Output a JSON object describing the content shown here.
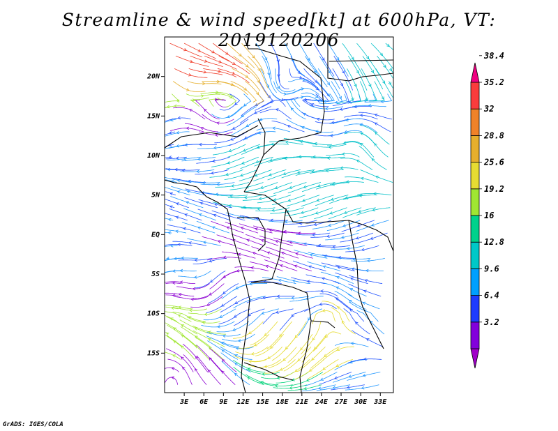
{
  "title": "Streamline & wind speed[kt] at 600hPa, VT: 2019120206",
  "credit": "GrADS: IGES/COLA",
  "map": {
    "lon_range": [
      0,
      35
    ],
    "lat_range": [
      -20,
      25
    ],
    "y_ticks": [
      {
        "lat": 20,
        "label": "20N"
      },
      {
        "lat": 15,
        "label": "15N"
      },
      {
        "lat": 10,
        "label": "10N"
      },
      {
        "lat": 5,
        "label": "5N"
      },
      {
        "lat": 0,
        "label": "EQ"
      },
      {
        "lat": -5,
        "label": "5S"
      },
      {
        "lat": -10,
        "label": "10S"
      },
      {
        "lat": -15,
        "label": "15S"
      }
    ],
    "x_ticks": [
      {
        "lon": 3,
        "label": "3E"
      },
      {
        "lon": 6,
        "label": "6E"
      },
      {
        "lon": 9,
        "label": "9E"
      },
      {
        "lon": 12,
        "label": "12E"
      },
      {
        "lon": 15,
        "label": "15E"
      },
      {
        "lon": 18,
        "label": "18E"
      },
      {
        "lon": 21,
        "label": "21E"
      },
      {
        "lon": 24,
        "label": "24E"
      },
      {
        "lon": 27,
        "label": "27E"
      },
      {
        "lon": 30,
        "label": "30E"
      },
      {
        "lon": 33,
        "label": "33E"
      }
    ]
  },
  "colorbar": {
    "labels": [
      "3.2",
      "6.4",
      "9.6",
      "12.8",
      "16",
      "19.2",
      "25.6",
      "28.8",
      "32",
      "35.2",
      "38.4"
    ],
    "colors": [
      "#a000c8",
      "#8200dc",
      "#1e3cff",
      "#00a0ff",
      "#00c8c8",
      "#00d28c",
      "#a0e632",
      "#e6dc32",
      "#e6af2d",
      "#f08228",
      "#fa3c3c",
      "#f00082"
    ]
  },
  "line_colors": {
    "purple": "#8c00d2",
    "blue": "#1e50ff",
    "lightblue": "#1e96ff",
    "cyan": "#00c0c8",
    "green": "#00d278",
    "yellowgreen": "#a0e632",
    "yellow": "#e6dc32",
    "orange": "#e6af2d",
    "red": "#f03c28"
  }
}
